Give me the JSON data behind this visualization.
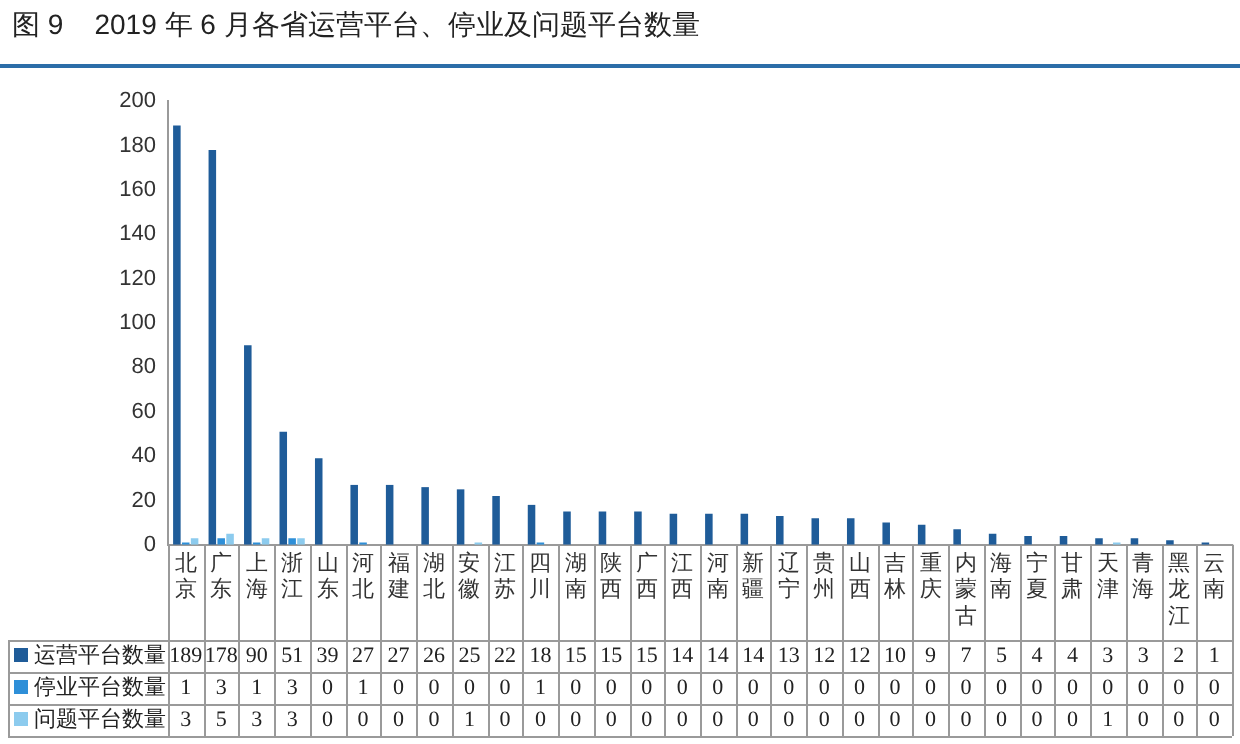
{
  "chart_data": {
    "type": "bar",
    "title": "图 9    2019 年 6 月各省运营平台、停业及问题平台数量",
    "categories": [
      "北京",
      "广东",
      "上海",
      "浙江",
      "山东",
      "河北",
      "福建",
      "湖北",
      "安徽",
      "江苏",
      "四川",
      "湖南",
      "陕西",
      "广西",
      "江西",
      "河南",
      "新疆",
      "辽宁",
      "贵州",
      "山西",
      "吉林",
      "重庆",
      "内蒙古",
      "海南",
      "宁夏",
      "甘肃",
      "天津",
      "青海",
      "黑龙江",
      "云南"
    ],
    "series": [
      {
        "name": "运营平台数量",
        "color": "#1f5c99",
        "values": [
          189,
          178,
          90,
          51,
          39,
          27,
          27,
          26,
          25,
          22,
          18,
          15,
          15,
          15,
          14,
          14,
          14,
          13,
          12,
          12,
          10,
          9,
          7,
          5,
          4,
          4,
          3,
          3,
          2,
          1
        ]
      },
      {
        "name": "停业平台数量",
        "color": "#2e8fd8",
        "values": [
          1,
          3,
          1,
          3,
          0,
          1,
          0,
          0,
          0,
          0,
          1,
          0,
          0,
          0,
          0,
          0,
          0,
          0,
          0,
          0,
          0,
          0,
          0,
          0,
          0,
          0,
          0,
          0,
          0,
          0
        ]
      },
      {
        "name": "问题平台数量",
        "color": "#8ccbee",
        "values": [
          3,
          5,
          3,
          3,
          0,
          0,
          0,
          0,
          1,
          0,
          0,
          0,
          0,
          0,
          0,
          0,
          0,
          0,
          0,
          0,
          0,
          0,
          0,
          0,
          0,
          0,
          1,
          0,
          0,
          0
        ]
      }
    ],
    "ylim": [
      0,
      200
    ],
    "yticks": [
      0,
      20,
      40,
      60,
      80,
      100,
      120,
      140,
      160,
      180,
      200
    ],
    "grid": false,
    "legend": "bottom left",
    "data_labels": true
  }
}
